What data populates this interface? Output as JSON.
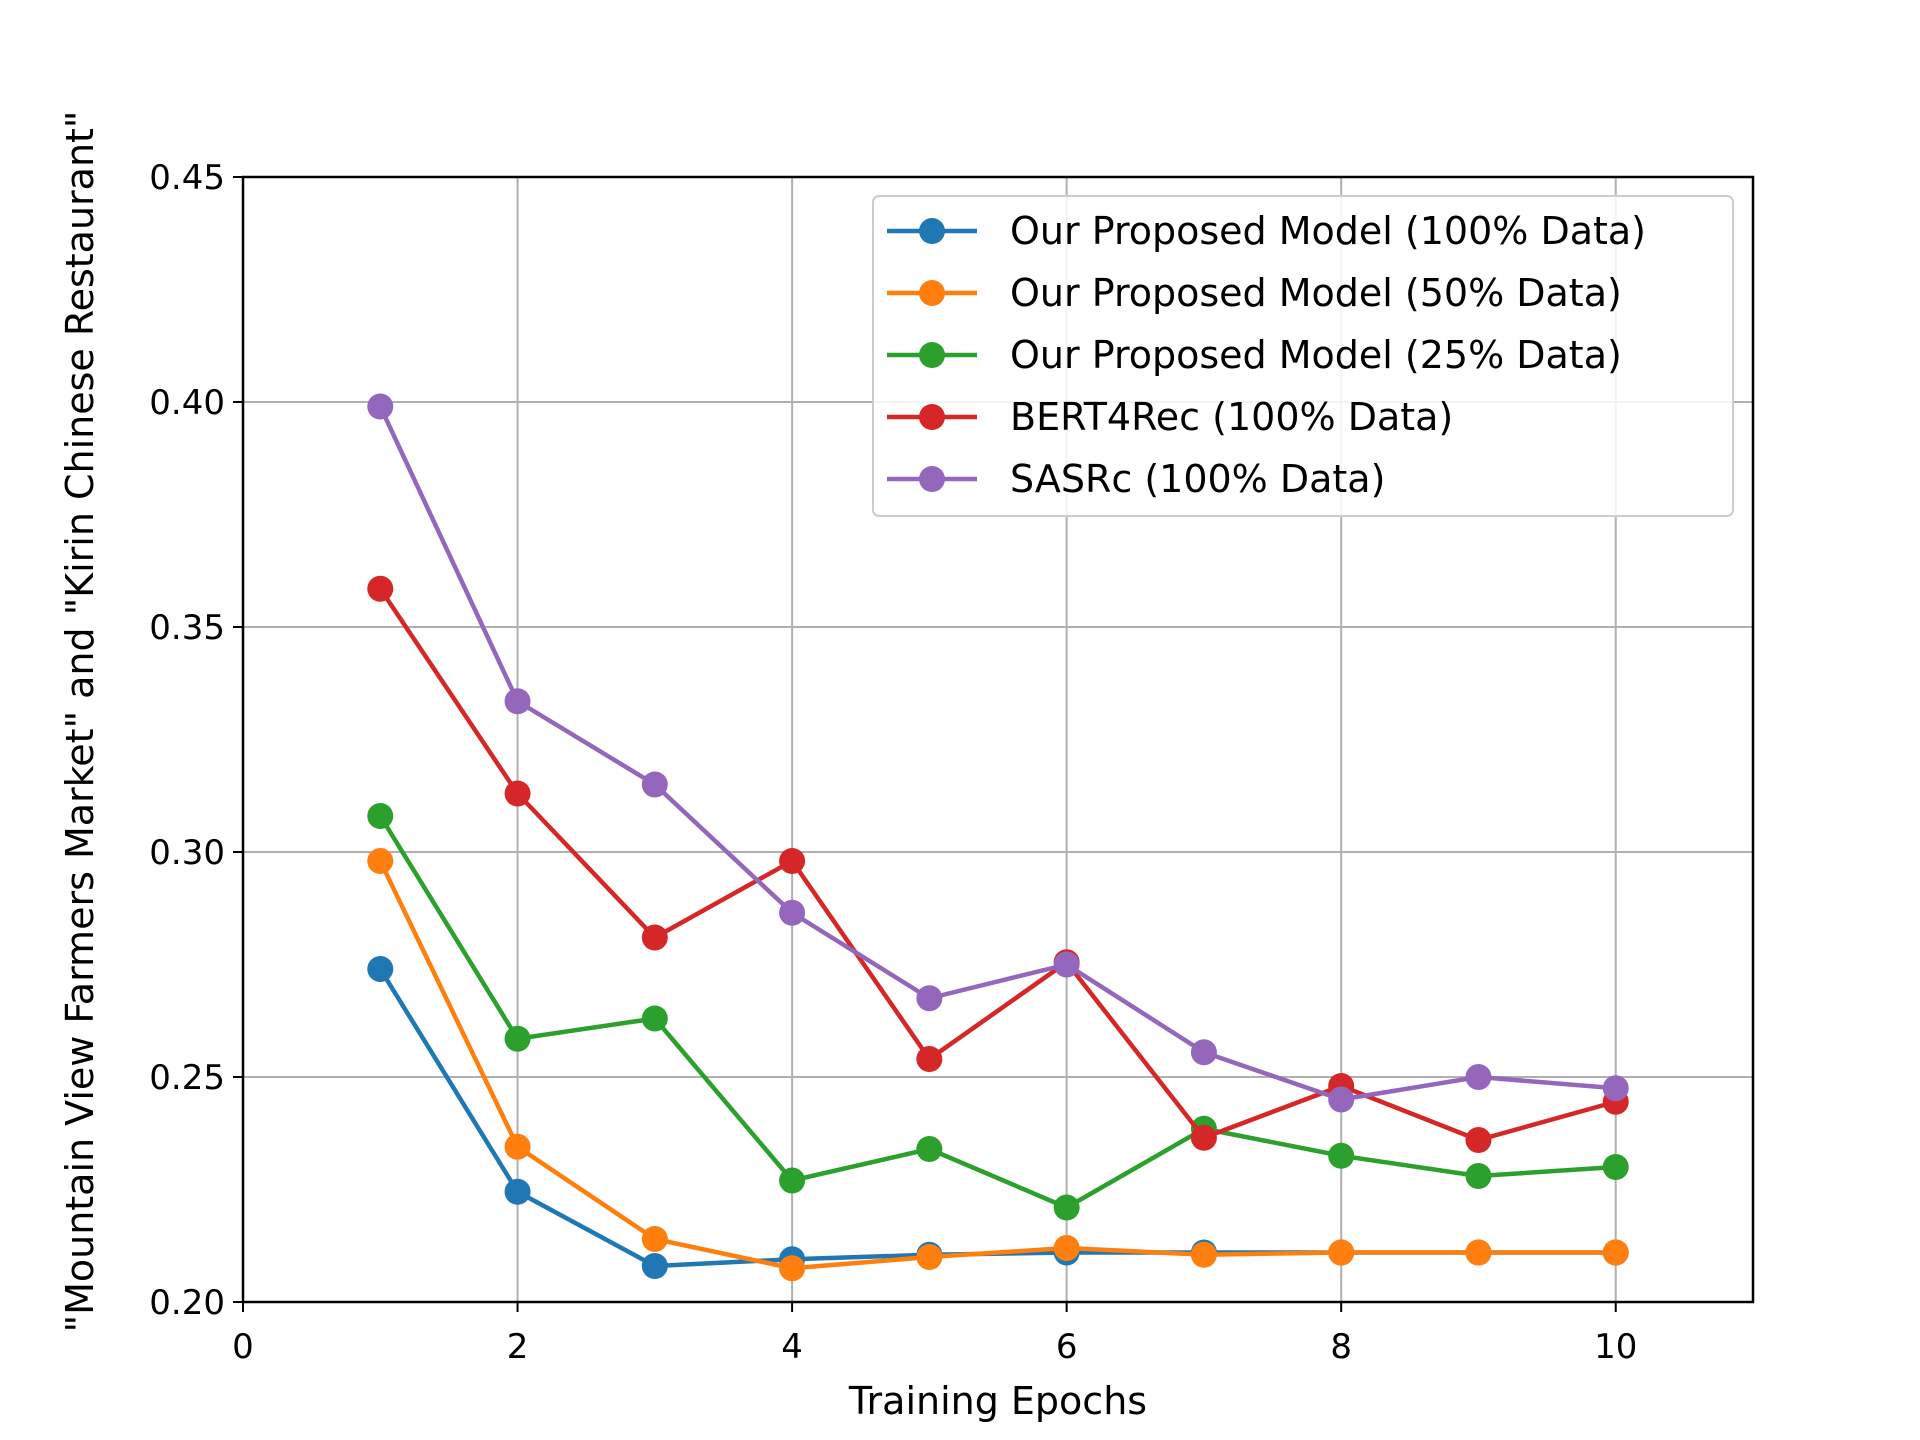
{
  "chart_data": {
    "type": "line",
    "title": "",
    "xlabel": "Training Epochs",
    "ylabel": "\"Mountain View Farmers Market\" and \"Kirin Chinese Restaurant\"",
    "xlim": [
      0,
      11
    ],
    "ylim": [
      0.2,
      0.45
    ],
    "xticks": [
      0,
      2,
      4,
      6,
      8,
      10
    ],
    "xtick_labels": [
      "0",
      "2",
      "4",
      "6",
      "8",
      "10"
    ],
    "yticks": [
      0.2,
      0.25,
      0.3,
      0.35,
      0.4,
      0.45
    ],
    "ytick_labels": [
      "0.20",
      "0.25",
      "0.30",
      "0.35",
      "0.40",
      "0.45"
    ],
    "grid": true,
    "legend_position": "top-right",
    "x": [
      1,
      2,
      3,
      4,
      5,
      6,
      7,
      8,
      9,
      10
    ],
    "series": [
      {
        "name": "Our Proposed Model (100% Data)",
        "color": "#1f77b4",
        "values": [
          0.274,
          0.2245,
          0.208,
          0.2095,
          0.2105,
          0.211,
          0.211,
          0.211,
          0.211,
          0.211
        ]
      },
      {
        "name": "Our Proposed Model (50% Data)",
        "color": "#ff7f0e",
        "values": [
          0.298,
          0.2345,
          0.214,
          0.2075,
          0.21,
          0.212,
          0.2105,
          0.211,
          0.211,
          0.211
        ]
      },
      {
        "name": "Our Proposed Model (25% Data)",
        "color": "#2ca02c",
        "values": [
          0.308,
          0.2585,
          0.263,
          0.227,
          0.234,
          0.221,
          0.2385,
          0.2325,
          0.228,
          0.23
        ]
      },
      {
        "name": "BERT4Rec (100% Data)",
        "color": "#d62728",
        "values": [
          0.3585,
          0.313,
          0.281,
          0.298,
          0.254,
          0.2755,
          0.2365,
          0.248,
          0.236,
          0.2445
        ]
      },
      {
        "name": "SASRc (100% Data)",
        "color": "#9467bd",
        "values": [
          0.399,
          0.3335,
          0.315,
          0.2865,
          0.2675,
          0.275,
          0.2555,
          0.245,
          0.25,
          0.2475
        ]
      }
    ]
  }
}
